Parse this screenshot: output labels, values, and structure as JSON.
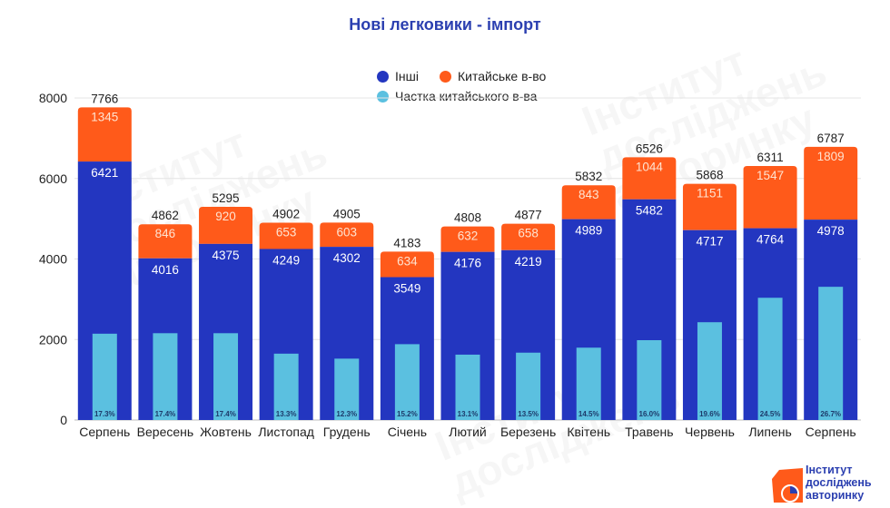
{
  "chart_data": {
    "type": "bar",
    "stacked": true,
    "title": "Нові легковики - імпорт",
    "xlabel": "",
    "ylabel": "",
    "ylim": [
      0,
      8000
    ],
    "yticks": [
      0,
      2000,
      4000,
      6000,
      8000
    ],
    "grid": true,
    "legend_position": "top-center",
    "categories": [
      "Серпень",
      "Вересень",
      "Жовтень",
      "Листопад",
      "Грудень",
      "Січень",
      "Лютий",
      "Березень",
      "Квітень",
      "Травень",
      "Червень",
      "Липень",
      "Серпень"
    ],
    "series": [
      {
        "name": "Інші",
        "color": "#2336c0",
        "values": [
          6421,
          4016,
          4375,
          4249,
          4302,
          3549,
          4176,
          4219,
          4989,
          5482,
          4717,
          4764,
          4978
        ]
      },
      {
        "name": "Китайське в-во",
        "color": "#ff5a1a",
        "values": [
          1345,
          846,
          920,
          653,
          603,
          634,
          632,
          658,
          843,
          1044,
          1151,
          1547,
          1809
        ]
      }
    ],
    "totals": [
      7766,
      4862,
      5295,
      4902,
      4905,
      4183,
      4808,
      4877,
      5832,
      6526,
      5868,
      6311,
      6787
    ],
    "share_series": {
      "name": "Частка китайського в-ва",
      "color": "#5bc0e0",
      "unit": "%",
      "values": [
        17.3,
        17.4,
        17.4,
        13.3,
        12.3,
        15.2,
        13.1,
        13.5,
        14.5,
        16.0,
        19.6,
        24.5,
        26.7
      ],
      "labels": [
        "17.3%",
        "17.4%",
        "17.4%",
        "13.3%",
        "12.3%",
        "15.2%",
        "13.1%",
        "13.5%",
        "14.5%",
        "16.0%",
        "19.6%",
        "24.5%",
        "26.7%"
      ]
    }
  },
  "legend": {
    "items": [
      {
        "label": "Інші",
        "color": "#2336c0"
      },
      {
        "label": "Китайське в-во",
        "color": "#ff5a1a"
      },
      {
        "label": "Частка китайського в-ва",
        "color": "#5bc0e0"
      }
    ]
  },
  "branding": {
    "logo_lines": [
      "Інститут",
      "досліджень",
      "авторинку"
    ],
    "watermark_lines": [
      "Інститут",
      "досліджень",
      "авторинку"
    ]
  }
}
